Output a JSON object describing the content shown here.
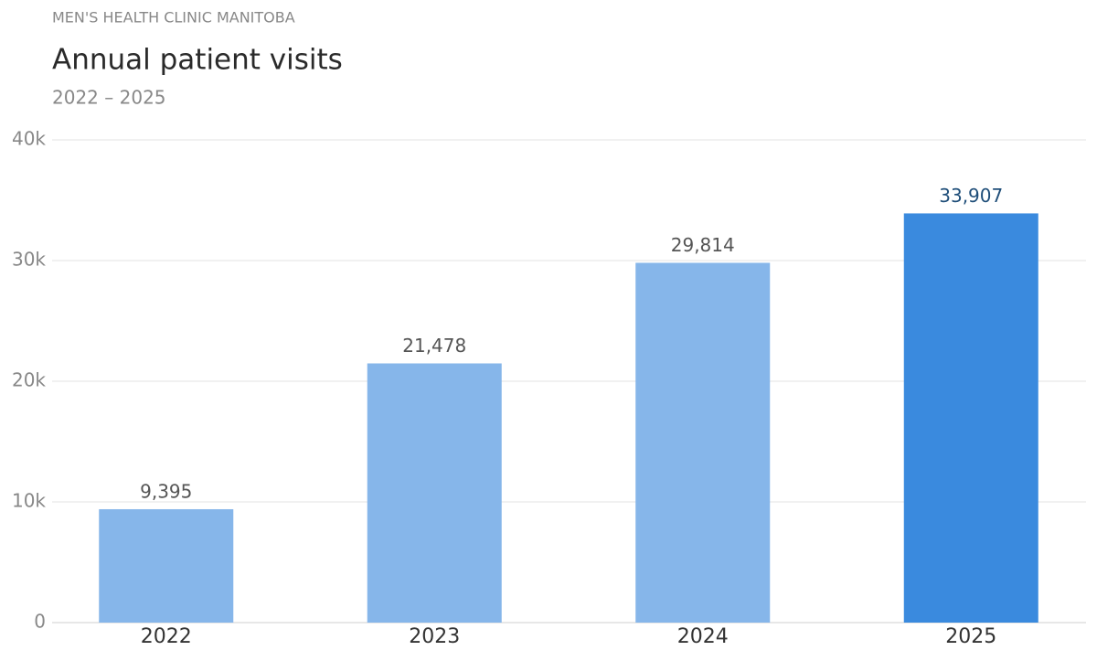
{
  "chart_data": {
    "type": "bar",
    "eyebrow": "MEN'S HEALTH CLINIC MANITOBA",
    "title": "Annual patient visits",
    "subtitle": "2022 – 2025",
    "categories": [
      "2022",
      "2023",
      "2024",
      "2025"
    ],
    "values": [
      9395,
      21478,
      29814,
      33907
    ],
    "value_labels": [
      "9,395",
      "21,478",
      "29,814",
      "33,907"
    ],
    "colors": [
      "#86b6ea",
      "#86b6ea",
      "#86b6ea",
      "#3a8ade"
    ],
    "value_label_colors": [
      "#555555",
      "#555555",
      "#555555",
      "#1f4e79"
    ],
    "ylim": [
      0,
      40000
    ],
    "yticks": [
      0,
      {
        "value": 10000,
        "label": "10k"
      },
      {
        "value": 20000,
        "label": "20k"
      },
      {
        "value": 30000,
        "label": "30k"
      },
      {
        "value": 40000,
        "label": "40k"
      }
    ],
    "grid": true
  }
}
